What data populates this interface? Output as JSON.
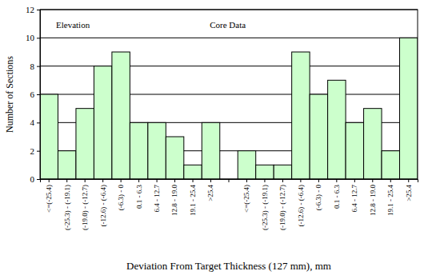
{
  "chart_data": {
    "type": "bar",
    "x_label": "Deviation From Target Thickness (127 mm), mm",
    "y_label": "Number of Sections",
    "categories": [
      "<=(-25.4)",
      "(-25.3) - (-19.1)",
      "(-19.0) - (-12.7)",
      "(-12.6) - (-6.4)",
      "(-6.3) - 0",
      "0.1 - 6.3",
      "6.4 - 12.7",
      "12.8 - 19.0",
      "19.1 - 25.4",
      ">25.4",
      null,
      "<=(-25.4)",
      "(-25.3) - (-19.1)",
      "(-19.0) - (-12.7)",
      "(-12.6) - (-6.4)",
      "(-6.3) - 0",
      "0.1 - 6.3",
      "6.4 - 12.7",
      "12.8 - 19.0",
      "19.1 - 25.4",
      ">25.4"
    ],
    "series": [
      {
        "name": "Elevation",
        "color": "#ccffcc",
        "values": [
          6,
          2,
          5,
          8,
          9,
          4,
          4,
          3,
          1,
          4,
          null,
          null,
          null,
          null,
          null,
          null,
          null,
          null,
          null,
          null,
          null
        ]
      },
      {
        "name": "Core Data",
        "color": "#ccffcc",
        "values": [
          null,
          null,
          null,
          null,
          null,
          null,
          null,
          null,
          null,
          null,
          null,
          2,
          1,
          1,
          9,
          6,
          7,
          4,
          5,
          2,
          10
        ]
      }
    ],
    "ylim": [
      0,
      12
    ],
    "yticks": [
      0,
      2,
      4,
      6,
      8,
      10,
      12
    ],
    "grid": true
  }
}
